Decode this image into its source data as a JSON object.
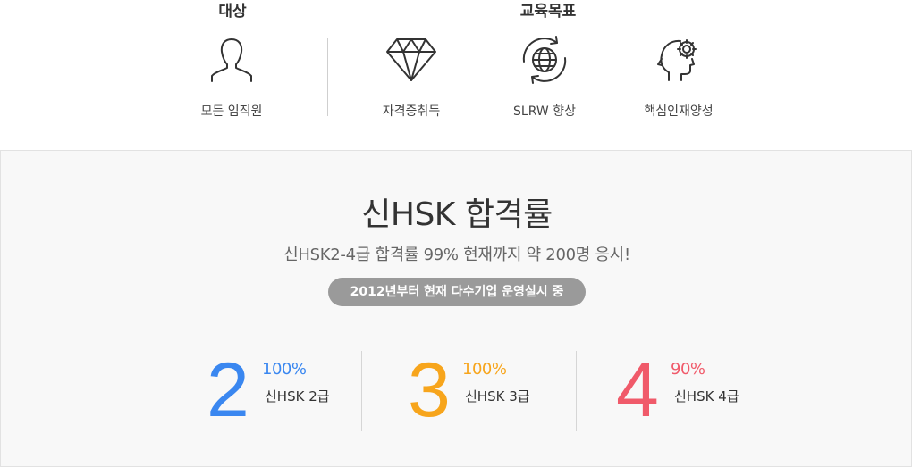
{
  "top": {
    "target_heading": "대상",
    "goal_heading": "교육목표",
    "items": [
      {
        "label": "모든 임직원",
        "icon": "person-outline-icon"
      },
      {
        "label": "자격증취득",
        "icon": "diamond-icon"
      },
      {
        "label": "SLRW 향상",
        "icon": "globe-refresh-icon"
      },
      {
        "label": "핵심인재양성",
        "icon": "head-gear-icon"
      }
    ]
  },
  "bottom": {
    "title": "신HSK 합격률",
    "subtitle": "신HSK2-4급 합격률 99% 현재까지 약 200명 응시!",
    "badge": "2012년부터 현재 다수기업 운영실시 중",
    "stats": [
      {
        "level": "2",
        "rate": "100%",
        "name": "신HSK 2급",
        "color": "#3a87f0"
      },
      {
        "level": "3",
        "rate": "100%",
        "name": "신HSK 3급",
        "color": "#f7a51c"
      },
      {
        "level": "4",
        "rate": "90%",
        "name": "신HSK 4급",
        "color": "#f05a6a"
      }
    ]
  }
}
